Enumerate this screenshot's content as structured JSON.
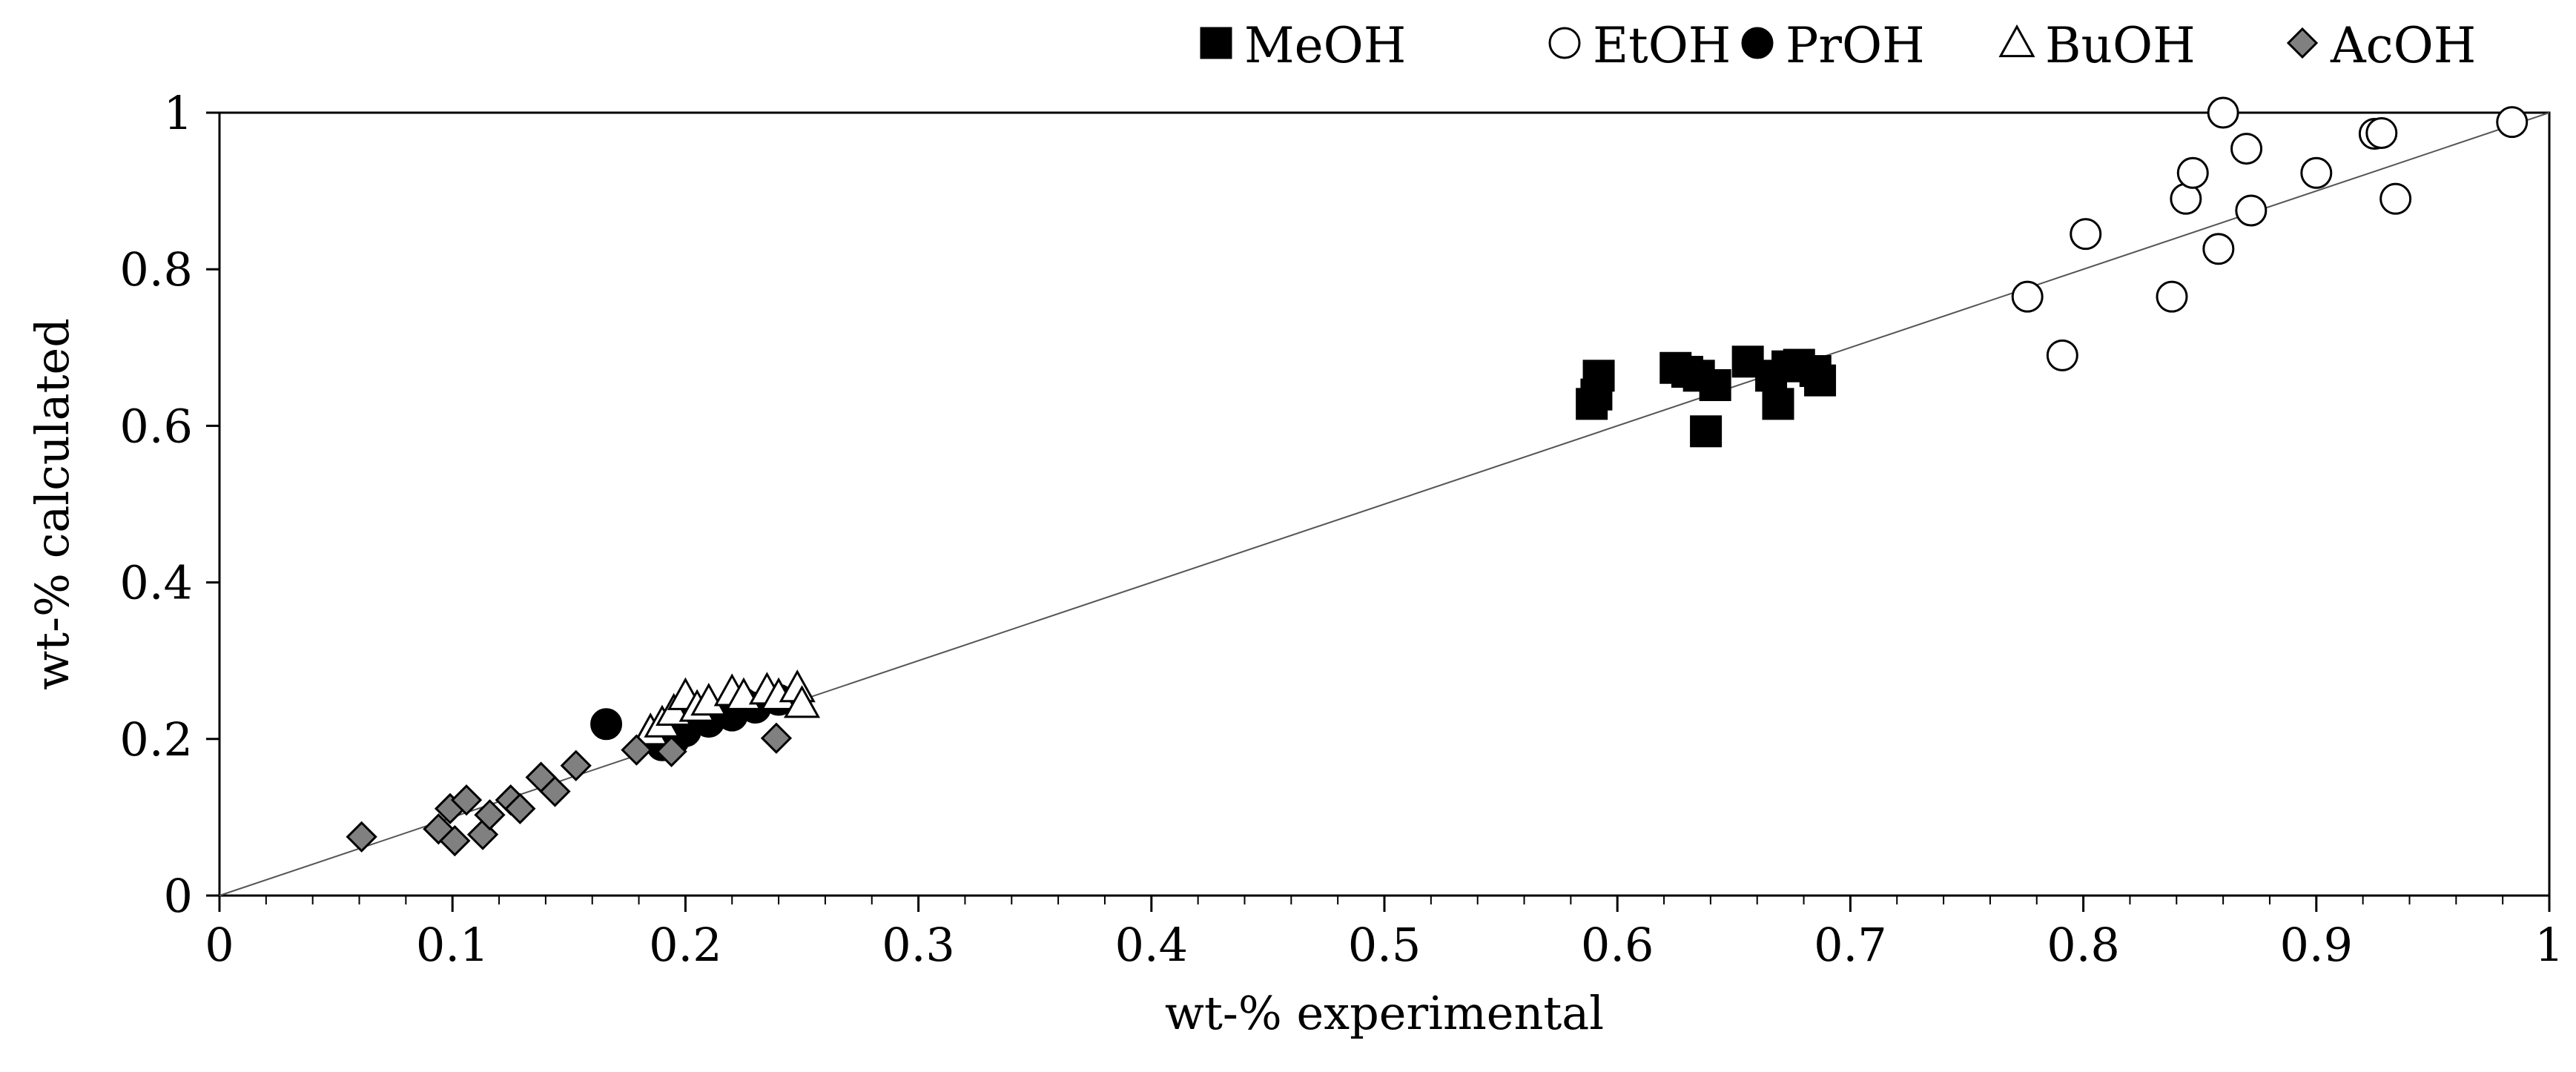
{
  "chart_data": {
    "type": "scatter",
    "title": "",
    "xlabel": "wt-% experimental",
    "ylabel": "wt-% calculated",
    "xlim": [
      0,
      1
    ],
    "ylim": [
      0,
      1
    ],
    "x_ticks": [
      "0",
      "0.1",
      "0.2",
      "0.3",
      "0.4",
      "0.5",
      "0.6",
      "0.7",
      "0.8",
      "0.9",
      "1"
    ],
    "y_ticks": [
      "0",
      "0.2",
      "0.4",
      "0.6",
      "0.8",
      "1"
    ],
    "grid": false,
    "legend_position": "top-right",
    "reference_line": {
      "x": [
        0,
        1
      ],
      "y": [
        0,
        1
      ]
    },
    "series": [
      {
        "name": "MeOH",
        "marker": "square",
        "fill": "#000000",
        "stroke": "#000000",
        "points": [
          [
            0.589,
            0.628
          ],
          [
            0.591,
            0.64
          ],
          [
            0.592,
            0.664
          ],
          [
            0.625,
            0.674
          ],
          [
            0.63,
            0.669
          ],
          [
            0.635,
            0.664
          ],
          [
            0.638,
            0.593
          ],
          [
            0.642,
            0.652
          ],
          [
            0.656,
            0.682
          ],
          [
            0.666,
            0.664
          ],
          [
            0.669,
            0.628
          ],
          [
            0.673,
            0.676
          ],
          [
            0.678,
            0.678
          ],
          [
            0.685,
            0.67
          ],
          [
            0.687,
            0.658
          ]
        ]
      },
      {
        "name": "EtOH",
        "marker": "circle",
        "fill": "#ffffff",
        "stroke": "#000000",
        "points": [
          [
            0.776,
            0.765
          ],
          [
            0.791,
            0.69
          ],
          [
            0.801,
            0.845
          ],
          [
            0.838,
            0.765
          ],
          [
            0.844,
            0.89
          ],
          [
            0.847,
            0.923
          ],
          [
            0.858,
            0.826
          ],
          [
            0.86,
            1.0
          ],
          [
            0.87,
            0.954
          ],
          [
            0.872,
            0.875
          ],
          [
            0.9,
            0.923
          ],
          [
            0.925,
            0.973
          ],
          [
            0.928,
            0.974
          ],
          [
            0.934,
            0.89
          ],
          [
            0.984,
            0.988
          ]
        ]
      },
      {
        "name": "PrOH",
        "marker": "circle",
        "fill": "#000000",
        "stroke": "#000000",
        "points": [
          [
            0.166,
            0.219
          ],
          [
            0.19,
            0.192
          ],
          [
            0.195,
            0.199
          ],
          [
            0.2,
            0.21
          ],
          [
            0.203,
            0.232
          ],
          [
            0.21,
            0.222
          ],
          [
            0.22,
            0.23
          ],
          [
            0.225,
            0.245
          ],
          [
            0.23,
            0.24
          ],
          [
            0.24,
            0.25
          ]
        ]
      },
      {
        "name": "BuOH",
        "marker": "triangle",
        "fill": "#ffffff",
        "stroke": "#000000",
        "points": [
          [
            0.185,
            0.21
          ],
          [
            0.19,
            0.22
          ],
          [
            0.195,
            0.235
          ],
          [
            0.2,
            0.255
          ],
          [
            0.205,
            0.24
          ],
          [
            0.21,
            0.248
          ],
          [
            0.22,
            0.26
          ],
          [
            0.225,
            0.255
          ],
          [
            0.235,
            0.262
          ],
          [
            0.24,
            0.255
          ],
          [
            0.248,
            0.265
          ],
          [
            0.25,
            0.245
          ]
        ]
      },
      {
        "name": "AcOH",
        "marker": "diamond",
        "fill": "#808080",
        "stroke": "#000000",
        "points": [
          [
            0.061,
            0.075
          ],
          [
            0.094,
            0.085
          ],
          [
            0.099,
            0.111
          ],
          [
            0.101,
            0.07
          ],
          [
            0.106,
            0.122
          ],
          [
            0.113,
            0.078
          ],
          [
            0.116,
            0.103
          ],
          [
            0.125,
            0.122
          ],
          [
            0.129,
            0.111
          ],
          [
            0.138,
            0.151
          ],
          [
            0.144,
            0.133
          ],
          [
            0.153,
            0.166
          ],
          [
            0.179,
            0.186
          ],
          [
            0.194,
            0.184
          ],
          [
            0.239,
            0.201
          ]
        ]
      }
    ]
  }
}
